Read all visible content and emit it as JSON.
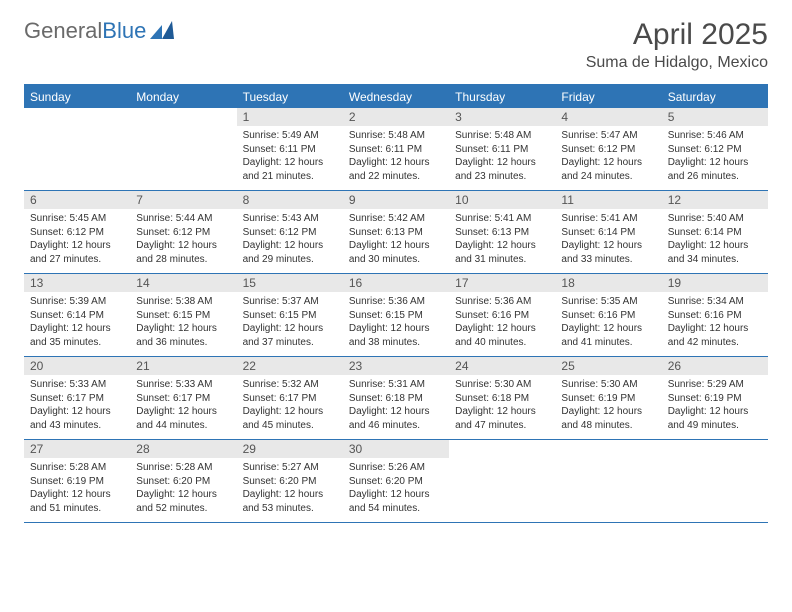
{
  "brand": {
    "name_gray": "General",
    "name_blue": "Blue"
  },
  "title": "April 2025",
  "location": "Suma de Hidalgo, Mexico",
  "colors": {
    "accent": "#2e74b5",
    "header_bg": "#2e74b5",
    "daynum_bg": "#e8e8e8",
    "text": "#333333",
    "muted": "#6a6a6a"
  },
  "dow": [
    "Sunday",
    "Monday",
    "Tuesday",
    "Wednesday",
    "Thursday",
    "Friday",
    "Saturday"
  ],
  "weeks": [
    [
      {
        "n": "",
        "sr": "",
        "ss": "",
        "dl": ""
      },
      {
        "n": "",
        "sr": "",
        "ss": "",
        "dl": ""
      },
      {
        "n": "1",
        "sr": "5:49 AM",
        "ss": "6:11 PM",
        "dl": "12 hours and 21 minutes."
      },
      {
        "n": "2",
        "sr": "5:48 AM",
        "ss": "6:11 PM",
        "dl": "12 hours and 22 minutes."
      },
      {
        "n": "3",
        "sr": "5:48 AM",
        "ss": "6:11 PM",
        "dl": "12 hours and 23 minutes."
      },
      {
        "n": "4",
        "sr": "5:47 AM",
        "ss": "6:12 PM",
        "dl": "12 hours and 24 minutes."
      },
      {
        "n": "5",
        "sr": "5:46 AM",
        "ss": "6:12 PM",
        "dl": "12 hours and 26 minutes."
      }
    ],
    [
      {
        "n": "6",
        "sr": "5:45 AM",
        "ss": "6:12 PM",
        "dl": "12 hours and 27 minutes."
      },
      {
        "n": "7",
        "sr": "5:44 AM",
        "ss": "6:12 PM",
        "dl": "12 hours and 28 minutes."
      },
      {
        "n": "8",
        "sr": "5:43 AM",
        "ss": "6:12 PM",
        "dl": "12 hours and 29 minutes."
      },
      {
        "n": "9",
        "sr": "5:42 AM",
        "ss": "6:13 PM",
        "dl": "12 hours and 30 minutes."
      },
      {
        "n": "10",
        "sr": "5:41 AM",
        "ss": "6:13 PM",
        "dl": "12 hours and 31 minutes."
      },
      {
        "n": "11",
        "sr": "5:41 AM",
        "ss": "6:14 PM",
        "dl": "12 hours and 33 minutes."
      },
      {
        "n": "12",
        "sr": "5:40 AM",
        "ss": "6:14 PM",
        "dl": "12 hours and 34 minutes."
      }
    ],
    [
      {
        "n": "13",
        "sr": "5:39 AM",
        "ss": "6:14 PM",
        "dl": "12 hours and 35 minutes."
      },
      {
        "n": "14",
        "sr": "5:38 AM",
        "ss": "6:15 PM",
        "dl": "12 hours and 36 minutes."
      },
      {
        "n": "15",
        "sr": "5:37 AM",
        "ss": "6:15 PM",
        "dl": "12 hours and 37 minutes."
      },
      {
        "n": "16",
        "sr": "5:36 AM",
        "ss": "6:15 PM",
        "dl": "12 hours and 38 minutes."
      },
      {
        "n": "17",
        "sr": "5:36 AM",
        "ss": "6:16 PM",
        "dl": "12 hours and 40 minutes."
      },
      {
        "n": "18",
        "sr": "5:35 AM",
        "ss": "6:16 PM",
        "dl": "12 hours and 41 minutes."
      },
      {
        "n": "19",
        "sr": "5:34 AM",
        "ss": "6:16 PM",
        "dl": "12 hours and 42 minutes."
      }
    ],
    [
      {
        "n": "20",
        "sr": "5:33 AM",
        "ss": "6:17 PM",
        "dl": "12 hours and 43 minutes."
      },
      {
        "n": "21",
        "sr": "5:33 AM",
        "ss": "6:17 PM",
        "dl": "12 hours and 44 minutes."
      },
      {
        "n": "22",
        "sr": "5:32 AM",
        "ss": "6:17 PM",
        "dl": "12 hours and 45 minutes."
      },
      {
        "n": "23",
        "sr": "5:31 AM",
        "ss": "6:18 PM",
        "dl": "12 hours and 46 minutes."
      },
      {
        "n": "24",
        "sr": "5:30 AM",
        "ss": "6:18 PM",
        "dl": "12 hours and 47 minutes."
      },
      {
        "n": "25",
        "sr": "5:30 AM",
        "ss": "6:19 PM",
        "dl": "12 hours and 48 minutes."
      },
      {
        "n": "26",
        "sr": "5:29 AM",
        "ss": "6:19 PM",
        "dl": "12 hours and 49 minutes."
      }
    ],
    [
      {
        "n": "27",
        "sr": "5:28 AM",
        "ss": "6:19 PM",
        "dl": "12 hours and 51 minutes."
      },
      {
        "n": "28",
        "sr": "5:28 AM",
        "ss": "6:20 PM",
        "dl": "12 hours and 52 minutes."
      },
      {
        "n": "29",
        "sr": "5:27 AM",
        "ss": "6:20 PM",
        "dl": "12 hours and 53 minutes."
      },
      {
        "n": "30",
        "sr": "5:26 AM",
        "ss": "6:20 PM",
        "dl": "12 hours and 54 minutes."
      },
      {
        "n": "",
        "sr": "",
        "ss": "",
        "dl": ""
      },
      {
        "n": "",
        "sr": "",
        "ss": "",
        "dl": ""
      },
      {
        "n": "",
        "sr": "",
        "ss": "",
        "dl": ""
      }
    ]
  ],
  "labels": {
    "sunrise": "Sunrise:",
    "sunset": "Sunset:",
    "daylight": "Daylight:"
  }
}
